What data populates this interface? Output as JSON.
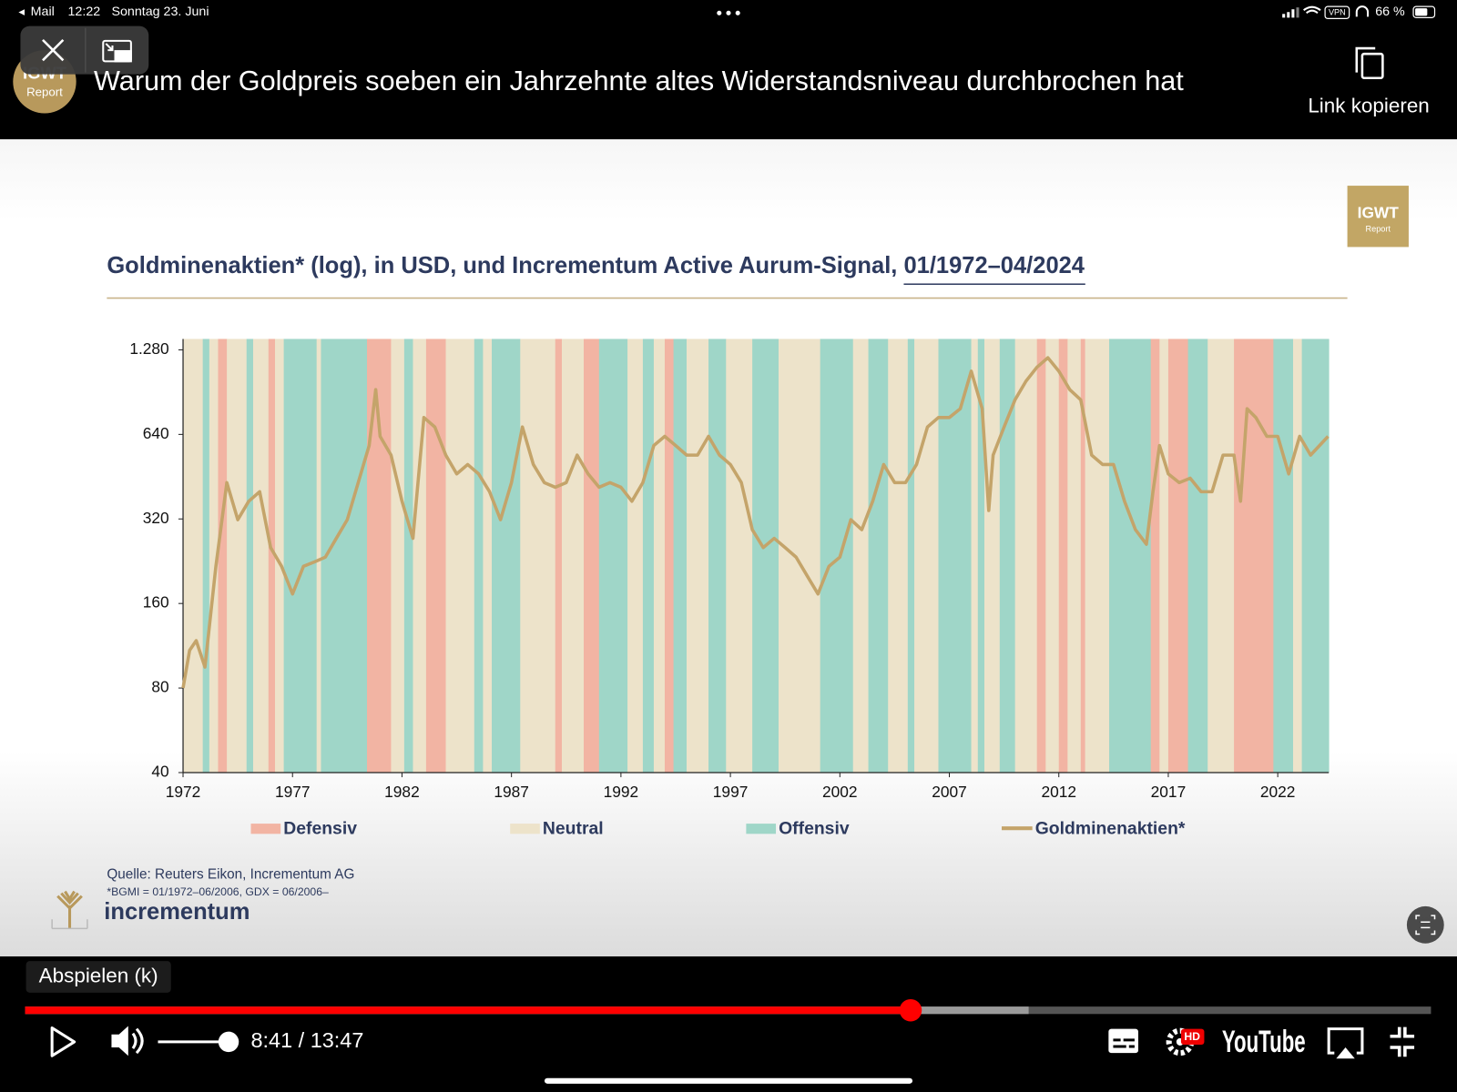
{
  "status_bar": {
    "back_app": "Mail",
    "time": "12:22",
    "date": "Sonntag 23. Juni",
    "vpn": "VPN",
    "battery": "66 %"
  },
  "video": {
    "channel_logo": {
      "name": "IGWT",
      "sub": "Report"
    },
    "title": "Warum der Goldpreis soeben ein Jahrzehnte altes Widerstandsniveau durchbrochen hat",
    "copy_link": "Link kopieren"
  },
  "slide": {
    "logo": {
      "name": "IGWT",
      "sub": "Report"
    },
    "source": "Quelle: Reuters Eikon, Incrementum AG",
    "footnote": "*BGMI = 01/1972–06/2006, GDX = 06/2006–",
    "brand": "incrementum"
  },
  "chart_data": {
    "type": "line",
    "title": "Goldminenaktien* (log), in USD, und Incrementum Active Aurum-Signal, ",
    "title_period": "01/1972–04/2024",
    "log_y": true,
    "xlim": [
      1972,
      2024.33
    ],
    "ylim": [
      40,
      1400
    ],
    "xticks": [
      1972,
      1977,
      1982,
      1987,
      1992,
      1997,
      2002,
      2007,
      2012,
      2017,
      2022
    ],
    "yticks": [
      40,
      80,
      160,
      320,
      640,
      {
        "value": 1280,
        "label": "1.280"
      }
    ],
    "regimes": [
      {
        "name": "Defensiv",
        "color": "#f2b4a3"
      },
      {
        "name": "Neutral",
        "color": "#ede3ca"
      },
      {
        "name": "Offensiv",
        "color": "#9fd6c8"
      }
    ],
    "bands": [
      {
        "start": 1972,
        "end": 1972.9,
        "regime": 1
      },
      {
        "start": 1972.9,
        "end": 1973.2,
        "regime": 2
      },
      {
        "start": 1973.2,
        "end": 1973.6,
        "regime": 1
      },
      {
        "start": 1973.6,
        "end": 1974.0,
        "regime": 0
      },
      {
        "start": 1974.0,
        "end": 1974.9,
        "regime": 1
      },
      {
        "start": 1974.9,
        "end": 1975.2,
        "regime": 2
      },
      {
        "start": 1975.2,
        "end": 1975.9,
        "regime": 1
      },
      {
        "start": 1975.9,
        "end": 1976.2,
        "regime": 0
      },
      {
        "start": 1976.2,
        "end": 1976.6,
        "regime": 1
      },
      {
        "start": 1976.6,
        "end": 1978.1,
        "regime": 2
      },
      {
        "start": 1978.1,
        "end": 1978.3,
        "regime": 1
      },
      {
        "start": 1978.3,
        "end": 1980.4,
        "regime": 2
      },
      {
        "start": 1980.4,
        "end": 1981.5,
        "regime": 0
      },
      {
        "start": 1981.5,
        "end": 1982.1,
        "regime": 1
      },
      {
        "start": 1982.1,
        "end": 1982.5,
        "regime": 2
      },
      {
        "start": 1982.5,
        "end": 1983.1,
        "regime": 1
      },
      {
        "start": 1983.1,
        "end": 1984.0,
        "regime": 0
      },
      {
        "start": 1984.0,
        "end": 1985.3,
        "regime": 1
      },
      {
        "start": 1985.3,
        "end": 1985.7,
        "regime": 2
      },
      {
        "start": 1985.7,
        "end": 1986.1,
        "regime": 1
      },
      {
        "start": 1986.1,
        "end": 1987.4,
        "regime": 2
      },
      {
        "start": 1987.4,
        "end": 1989.0,
        "regime": 1
      },
      {
        "start": 1989.0,
        "end": 1989.3,
        "regime": 0
      },
      {
        "start": 1989.3,
        "end": 1990.3,
        "regime": 1
      },
      {
        "start": 1990.3,
        "end": 1991.0,
        "regime": 0
      },
      {
        "start": 1991.0,
        "end": 1992.3,
        "regime": 2
      },
      {
        "start": 1992.3,
        "end": 1993.0,
        "regime": 1
      },
      {
        "start": 1993.0,
        "end": 1993.5,
        "regime": 2
      },
      {
        "start": 1993.5,
        "end": 1994.0,
        "regime": 1
      },
      {
        "start": 1994.0,
        "end": 1994.4,
        "regime": 0
      },
      {
        "start": 1994.4,
        "end": 1995.0,
        "regime": 2
      },
      {
        "start": 1995.0,
        "end": 1996.0,
        "regime": 1
      },
      {
        "start": 1996.0,
        "end": 1996.8,
        "regime": 2
      },
      {
        "start": 1996.8,
        "end": 1998.0,
        "regime": 1
      },
      {
        "start": 1998.0,
        "end": 1999.2,
        "regime": 2
      },
      {
        "start": 1999.2,
        "end": 2001.1,
        "regime": 1
      },
      {
        "start": 2001.1,
        "end": 2002.6,
        "regime": 2
      },
      {
        "start": 2002.6,
        "end": 2003.3,
        "regime": 1
      },
      {
        "start": 2003.3,
        "end": 2004.2,
        "regime": 2
      },
      {
        "start": 2004.2,
        "end": 2005.1,
        "regime": 1
      },
      {
        "start": 2005.1,
        "end": 2005.4,
        "regime": 2
      },
      {
        "start": 2005.4,
        "end": 2006.5,
        "regime": 1
      },
      {
        "start": 2006.5,
        "end": 2008.0,
        "regime": 2
      },
      {
        "start": 2008.0,
        "end": 2008.3,
        "regime": 1
      },
      {
        "start": 2008.3,
        "end": 2008.6,
        "regime": 2
      },
      {
        "start": 2008.6,
        "end": 2009.3,
        "regime": 1
      },
      {
        "start": 2009.3,
        "end": 2010.0,
        "regime": 2
      },
      {
        "start": 2010.0,
        "end": 2011.0,
        "regime": 1
      },
      {
        "start": 2011.0,
        "end": 2011.4,
        "regime": 0
      },
      {
        "start": 2011.4,
        "end": 2012.0,
        "regime": 1
      },
      {
        "start": 2012.0,
        "end": 2012.4,
        "regime": 0
      },
      {
        "start": 2012.4,
        "end": 2013.0,
        "regime": 1
      },
      {
        "start": 2013.0,
        "end": 2013.2,
        "regime": 0
      },
      {
        "start": 2013.2,
        "end": 2014.3,
        "regime": 1
      },
      {
        "start": 2014.3,
        "end": 2016.2,
        "regime": 2
      },
      {
        "start": 2016.2,
        "end": 2016.6,
        "regime": 0
      },
      {
        "start": 2016.6,
        "end": 2017.0,
        "regime": 1
      },
      {
        "start": 2017.0,
        "end": 2017.9,
        "regime": 0
      },
      {
        "start": 2017.9,
        "end": 2018.8,
        "regime": 2
      },
      {
        "start": 2018.8,
        "end": 2020.0,
        "regime": 1
      },
      {
        "start": 2020.0,
        "end": 2021.8,
        "regime": 0
      },
      {
        "start": 2021.8,
        "end": 2022.7,
        "regime": 2
      },
      {
        "start": 2022.7,
        "end": 2023.1,
        "regime": 1
      },
      {
        "start": 2023.1,
        "end": 2024.33,
        "regime": 2
      }
    ],
    "x": [
      1972,
      1972.3,
      1972.6,
      1973,
      1973.5,
      1974,
      1974.5,
      1975,
      1975.5,
      1976,
      1976.5,
      1977,
      1977.5,
      1978,
      1978.5,
      1979,
      1979.5,
      1980,
      1980.5,
      1980.8,
      1981,
      1981.5,
      1982,
      1982.5,
      1983,
      1983.5,
      1984,
      1984.5,
      1985,
      1985.5,
      1986,
      1986.5,
      1987,
      1987.5,
      1988,
      1988.5,
      1989,
      1989.5,
      1990,
      1990.5,
      1991,
      1991.5,
      1992,
      1992.5,
      1993,
      1993.5,
      1994,
      1994.5,
      1995,
      1995.5,
      1996,
      1996.5,
      1997,
      1997.5,
      1998,
      1998.5,
      1999,
      1999.5,
      2000,
      2000.5,
      2001,
      2001.5,
      2002,
      2002.5,
      2003,
      2003.5,
      2004,
      2004.5,
      2005,
      2005.5,
      2006,
      2006.5,
      2007,
      2007.5,
      2008,
      2008.5,
      2008.8,
      2009,
      2009.5,
      2010,
      2010.5,
      2011,
      2011.5,
      2012,
      2012.5,
      2013,
      2013.5,
      2014,
      2014.5,
      2015,
      2015.5,
      2016,
      2016.3,
      2016.6,
      2017,
      2017.5,
      2018,
      2018.5,
      2019,
      2019.5,
      2020,
      2020.3,
      2020.6,
      2021,
      2021.5,
      2022,
      2022.5,
      2023,
      2023.5,
      2024.3
    ],
    "series": [
      {
        "name": "Goldminenaktien*",
        "color": "#c4a46a",
        "values": [
          80,
          109,
          118,
          95,
          217,
          431,
          318,
          370,
          400,
          253,
          217,
          173,
          217,
          225,
          234,
          273,
          318,
          431,
          584,
          924,
          630,
          540,
          370,
          273,
          735,
          680,
          540,
          463,
          500,
          463,
          400,
          318,
          431,
          680,
          500,
          431,
          415,
          431,
          540,
          463,
          415,
          431,
          415,
          370,
          431,
          584,
          630,
          584,
          540,
          540,
          630,
          540,
          500,
          431,
          293,
          253,
          273,
          253,
          234,
          201,
          173,
          217,
          234,
          318,
          293,
          370,
          500,
          431,
          431,
          500,
          680,
          735,
          735,
          790,
          1075,
          790,
          343,
          540,
          680,
          850,
          990,
          1110,
          1200,
          1075,
          924,
          850,
          540,
          500,
          500,
          370,
          293,
          260,
          400,
          584,
          463,
          431,
          447,
          400,
          400,
          540,
          540,
          370,
          790,
          735,
          630,
          630,
          463,
          630,
          540,
          630
        ]
      }
    ]
  },
  "player": {
    "tooltip": "Abspielen (k)",
    "time": "8:41 / 13:47",
    "hd": "HD",
    "brand": "YouTube"
  }
}
